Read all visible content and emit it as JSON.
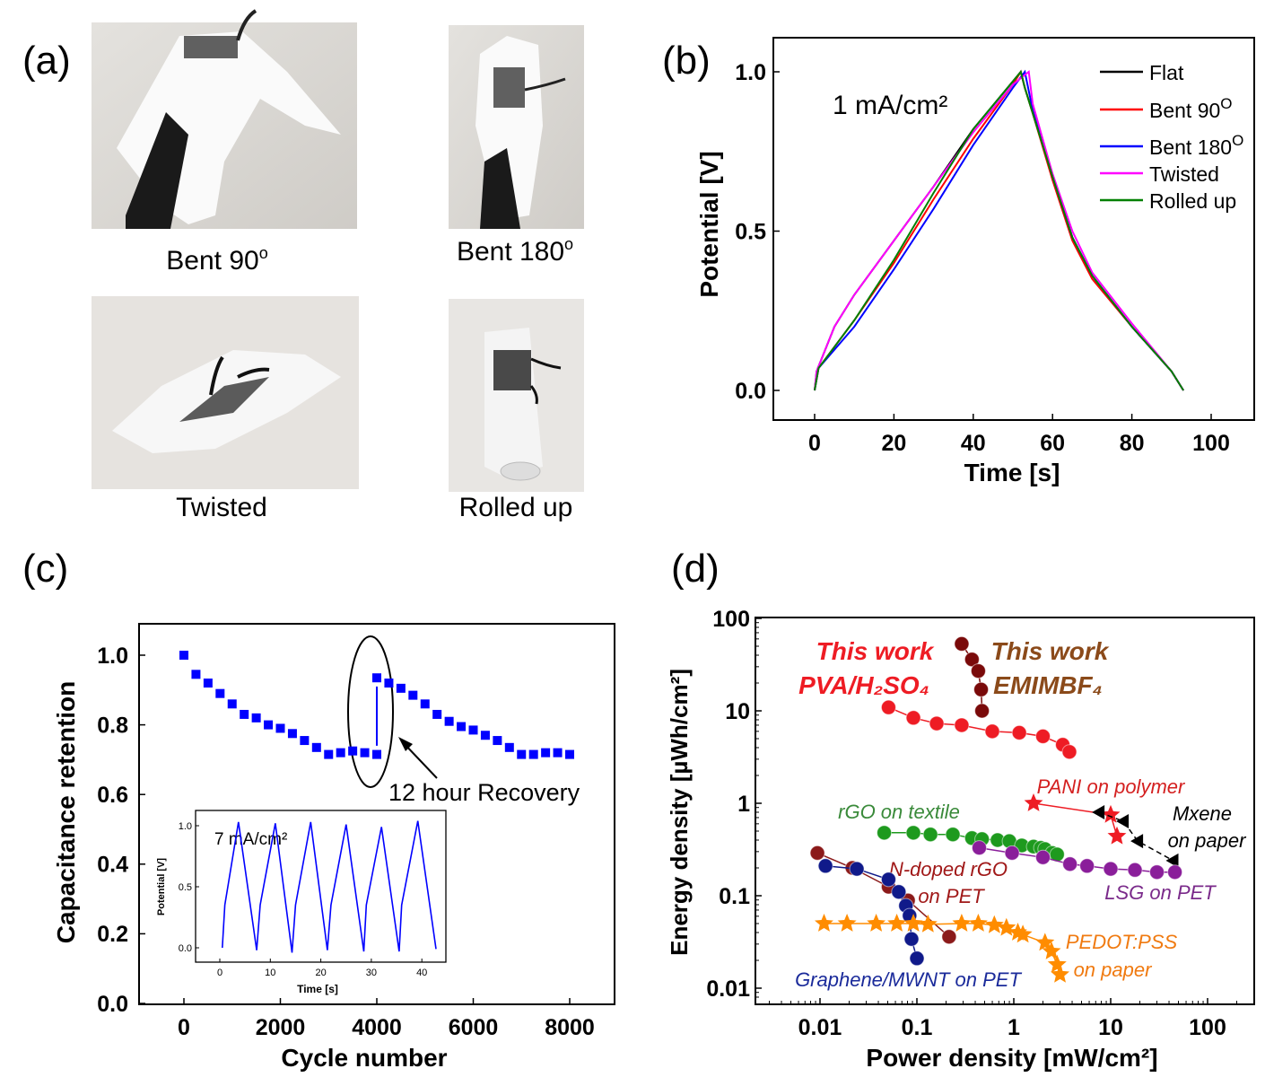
{
  "panel_labels": {
    "a": "(a)",
    "b": "(b)",
    "c": "(c)",
    "d": "(d)"
  },
  "panel_a": {
    "photos": [
      {
        "caption": "Bent 90",
        "sup": "o"
      },
      {
        "caption": "Bent 180",
        "sup": "o"
      },
      {
        "caption": "Twisted",
        "sup": ""
      },
      {
        "caption": "Rolled up",
        "sup": ""
      }
    ]
  },
  "chart_data": [
    {
      "id": "b",
      "type": "line",
      "xlabel": "Time [s]",
      "ylabel": "Potential [V]",
      "xlim": [
        -10,
        110
      ],
      "ylim": [
        -0.1,
        1.1
      ],
      "xticks": [
        0,
        20,
        40,
        60,
        80,
        100
      ],
      "yticks": [
        0.0,
        0.5,
        1.0
      ],
      "ytick_labels": [
        "0.0",
        "0.5",
        "1.0"
      ],
      "annotation": "1 mA/cm²",
      "legend_position": "top-right",
      "series": [
        {
          "name": "Flat",
          "sup": "",
          "color": "#000000",
          "x": [
            0,
            0.5,
            5,
            10,
            20,
            30,
            40,
            50,
            52,
            53,
            55,
            60,
            65,
            70,
            80,
            90,
            93
          ],
          "y": [
            0,
            0.06,
            0.2,
            0.3,
            0.47,
            0.64,
            0.82,
            0.97,
            1.0,
            0.95,
            0.87,
            0.67,
            0.48,
            0.36,
            0.2,
            0.06,
            0.0
          ]
        },
        {
          "name": "Bent 90",
          "sup": "O",
          "color": "#ff0000",
          "x": [
            0,
            1,
            10,
            20,
            30,
            40,
            50,
            52,
            53,
            55,
            60,
            65,
            70,
            80,
            90,
            93
          ],
          "y": [
            0,
            0.07,
            0.22,
            0.4,
            0.6,
            0.79,
            0.96,
            1.0,
            0.95,
            0.87,
            0.66,
            0.47,
            0.35,
            0.2,
            0.06,
            0.0
          ]
        },
        {
          "name": "Bent 180",
          "sup": "O",
          "color": "#0000ff",
          "x": [
            0,
            1,
            10,
            20,
            30,
            40,
            50,
            53,
            55,
            60,
            65,
            70,
            80,
            90,
            93
          ],
          "y": [
            0,
            0.07,
            0.2,
            0.38,
            0.57,
            0.77,
            0.95,
            1.0,
            0.88,
            0.67,
            0.48,
            0.36,
            0.2,
            0.06,
            0.0
          ]
        },
        {
          "name": "Twisted",
          "sup": "",
          "color": "#ff00ff",
          "x": [
            0,
            0.5,
            5,
            10,
            20,
            30,
            40,
            50,
            52,
            54,
            55,
            60,
            65,
            70,
            80,
            90,
            93
          ],
          "y": [
            0,
            0.06,
            0.2,
            0.3,
            0.47,
            0.64,
            0.81,
            0.96,
            0.98,
            1.0,
            0.9,
            0.68,
            0.5,
            0.37,
            0.21,
            0.06,
            0.0
          ]
        },
        {
          "name": "Rolled up",
          "sup": "",
          "color": "#008000",
          "x": [
            0,
            1,
            10,
            20,
            30,
            40,
            50,
            52,
            53,
            55,
            60,
            65,
            70,
            80,
            90,
            93
          ],
          "y": [
            0,
            0.07,
            0.22,
            0.41,
            0.62,
            0.82,
            0.97,
            1.0,
            0.95,
            0.87,
            0.67,
            0.48,
            0.36,
            0.2,
            0.06,
            0.0
          ]
        }
      ]
    },
    {
      "id": "c",
      "type": "scatter",
      "xlabel": "Cycle number",
      "ylabel": "Capacitance retention",
      "xlim": [
        -900,
        9000
      ],
      "ylim": [
        0,
        1.1
      ],
      "xticks": [
        0,
        2000,
        4000,
        6000,
        8000
      ],
      "yticks": [
        0.0,
        0.2,
        0.4,
        0.6,
        0.8,
        1.0
      ],
      "ytick_labels": [
        "0.0",
        "0.2",
        "0.4",
        "0.6",
        "0.8",
        "1.0"
      ],
      "annotation": "12 hour Recovery",
      "color": "#0000ff",
      "series": [
        {
          "x": [
            0,
            250,
            500,
            750,
            1000,
            1250,
            1500,
            1750,
            2000,
            2250,
            2500,
            2750,
            3000,
            3250,
            3500,
            3750,
            4000,
            4000,
            4250,
            4500,
            4750,
            5000,
            5250,
            5500,
            5750,
            6000,
            6250,
            6500,
            6750,
            7000,
            7250,
            7500,
            7750,
            8000
          ],
          "y": [
            1.0,
            0.945,
            0.92,
            0.89,
            0.86,
            0.83,
            0.82,
            0.8,
            0.79,
            0.775,
            0.755,
            0.735,
            0.715,
            0.72,
            0.725,
            0.72,
            0.715,
            0.935,
            0.92,
            0.905,
            0.885,
            0.86,
            0.83,
            0.81,
            0.795,
            0.785,
            0.77,
            0.755,
            0.735,
            0.715,
            0.715,
            0.72,
            0.72,
            0.715
          ]
        }
      ],
      "inset": {
        "type": "line",
        "xlabel": "Time [s]",
        "ylabel": "Potential [V]",
        "annotation": "7 mA/cm²",
        "xticks": [
          0,
          10,
          20,
          30,
          40
        ],
        "yticks": [
          0.0,
          0.5,
          1.0
        ],
        "ytick_labels": [
          "0.0",
          "0.5",
          "1.0"
        ],
        "color": "#0000ff",
        "x": [
          0.5,
          1,
          3.7,
          7.3,
          8,
          11,
          14.3,
          15,
          18,
          21.3,
          22,
          25,
          28.5,
          29,
          32,
          35.5,
          36,
          39.2,
          42.8
        ],
        "y": [
          0,
          0.35,
          1.03,
          -0.02,
          0.35,
          1.02,
          -0.04,
          0.35,
          1.03,
          -0.02,
          0.35,
          1.01,
          -0.03,
          0.35,
          0.99,
          -0.03,
          0.35,
          1.04,
          -0.01
        ]
      }
    },
    {
      "id": "d",
      "type": "scatter",
      "xlabel": "Power density [mW/cm²]",
      "ylabel": "Energy density [µWh/cm²]",
      "xscale": "log",
      "yscale": "log",
      "xlim": [
        0.002,
        300
      ],
      "ylim": [
        0.007,
        100
      ],
      "xticks": [
        0.01,
        0.1,
        1,
        10,
        100
      ],
      "xtick_labels": [
        "0.01",
        "0.1",
        "1",
        "10",
        "100"
      ],
      "yticks": [
        0.01,
        0.1,
        1,
        10,
        100
      ],
      "ytick_labels": [
        "0.01",
        "0.1",
        "1",
        "10",
        "100"
      ],
      "series": [
        {
          "name": "This work PVA/H₂SO₄",
          "lines": [
            "This work",
            "PVA/H₂SO₄"
          ],
          "color": "#ee1c24",
          "marker": "circle",
          "x": [
            0.051,
            0.092,
            0.16,
            0.29,
            0.6,
            1.14,
            2.0,
            3.2,
            3.75
          ],
          "y": [
            10.9,
            8.4,
            7.3,
            7.0,
            6.0,
            5.8,
            5.3,
            4.3,
            3.6
          ]
        },
        {
          "name": "This work EMIMBF₄",
          "lines": [
            "This work",
            "EMIMBF₄"
          ],
          "color": "#7a0a0a",
          "label_color": "#8b4a1a",
          "marker": "circle",
          "x": [
            0.29,
            0.37,
            0.43,
            0.46,
            0.47
          ],
          "y": [
            53,
            36,
            27,
            17,
            10
          ]
        },
        {
          "name": "PANI on polymer",
          "lines": [
            "PANI on polymer"
          ],
          "color": "#ee1c24",
          "label_color": "#d42020",
          "marker": "star",
          "x": [
            1.6,
            10,
            11.6
          ],
          "y": [
            1.0,
            0.75,
            0.44
          ]
        },
        {
          "name": "Mxene on paper",
          "lines": [
            "Mxene",
            "on paper"
          ],
          "color": "#000000",
          "marker": "triangle-left",
          "dashed": true,
          "x": [
            7.6,
            13.5,
            19,
            44
          ],
          "y": [
            0.8,
            0.64,
            0.39,
            0.24
          ]
        },
        {
          "name": "rGO on textile",
          "lines": [
            "rGO on textile"
          ],
          "color": "#1e9a1e",
          "label_color": "#3a8a3a",
          "marker": "circle",
          "x": [
            0.046,
            0.092,
            0.138,
            0.235,
            0.37,
            0.47,
            0.68,
            0.9,
            1.21,
            1.6,
            1.9,
            2.1,
            2.5,
            2.8
          ],
          "y": [
            0.48,
            0.48,
            0.46,
            0.46,
            0.42,
            0.41,
            0.4,
            0.39,
            0.35,
            0.34,
            0.33,
            0.32,
            0.29,
            0.28
          ]
        },
        {
          "name": "LSG on PET",
          "lines": [
            "LSG on PET"
          ],
          "color": "#8a1e9a",
          "label_color": "#7a2a8a",
          "marker": "circle",
          "x": [
            0.44,
            0.96,
            2.0,
            3.8,
            5.7,
            10,
            17.8,
            30,
            46
          ],
          "y": [
            0.33,
            0.29,
            0.26,
            0.22,
            0.21,
            0.195,
            0.19,
            0.18,
            0.18
          ]
        },
        {
          "name": "N-doped rGO on PET",
          "lines": [
            "N-doped rGO",
            "on PET"
          ],
          "color": "#8b1a1a",
          "label_color": "#a01818",
          "marker": "circle",
          "x": [
            0.0094,
            0.0216,
            0.051,
            0.081,
            0.215
          ],
          "y": [
            0.29,
            0.2,
            0.125,
            0.089,
            0.036
          ]
        },
        {
          "name": "Graphene/MWNT on PET",
          "lines": [
            "Graphene/MWNT on PET"
          ],
          "color": "#101a8a",
          "label_color": "#1a2a9a",
          "marker": "circle",
          "x": [
            0.0114,
            0.024,
            0.051,
            0.065,
            0.077,
            0.084,
            0.088,
            0.1
          ],
          "y": [
            0.21,
            0.195,
            0.15,
            0.11,
            0.078,
            0.061,
            0.034,
            0.021
          ]
        },
        {
          "name": "PEDOT:PSS on paper",
          "lines": [
            "PEDOT:PSS",
            "on paper"
          ],
          "color": "#ff8c00",
          "label_color": "#f07a10",
          "marker": "star",
          "x": [
            0.011,
            0.019,
            0.038,
            0.062,
            0.092,
            0.13,
            0.29,
            0.43,
            0.63,
            0.84,
            1.1,
            1.24,
            2.1,
            2.45,
            2.8,
            3.0
          ],
          "y": [
            0.05,
            0.05,
            0.05,
            0.05,
            0.05,
            0.049,
            0.05,
            0.05,
            0.048,
            0.045,
            0.04,
            0.038,
            0.031,
            0.025,
            0.018,
            0.014
          ]
        }
      ]
    }
  ]
}
